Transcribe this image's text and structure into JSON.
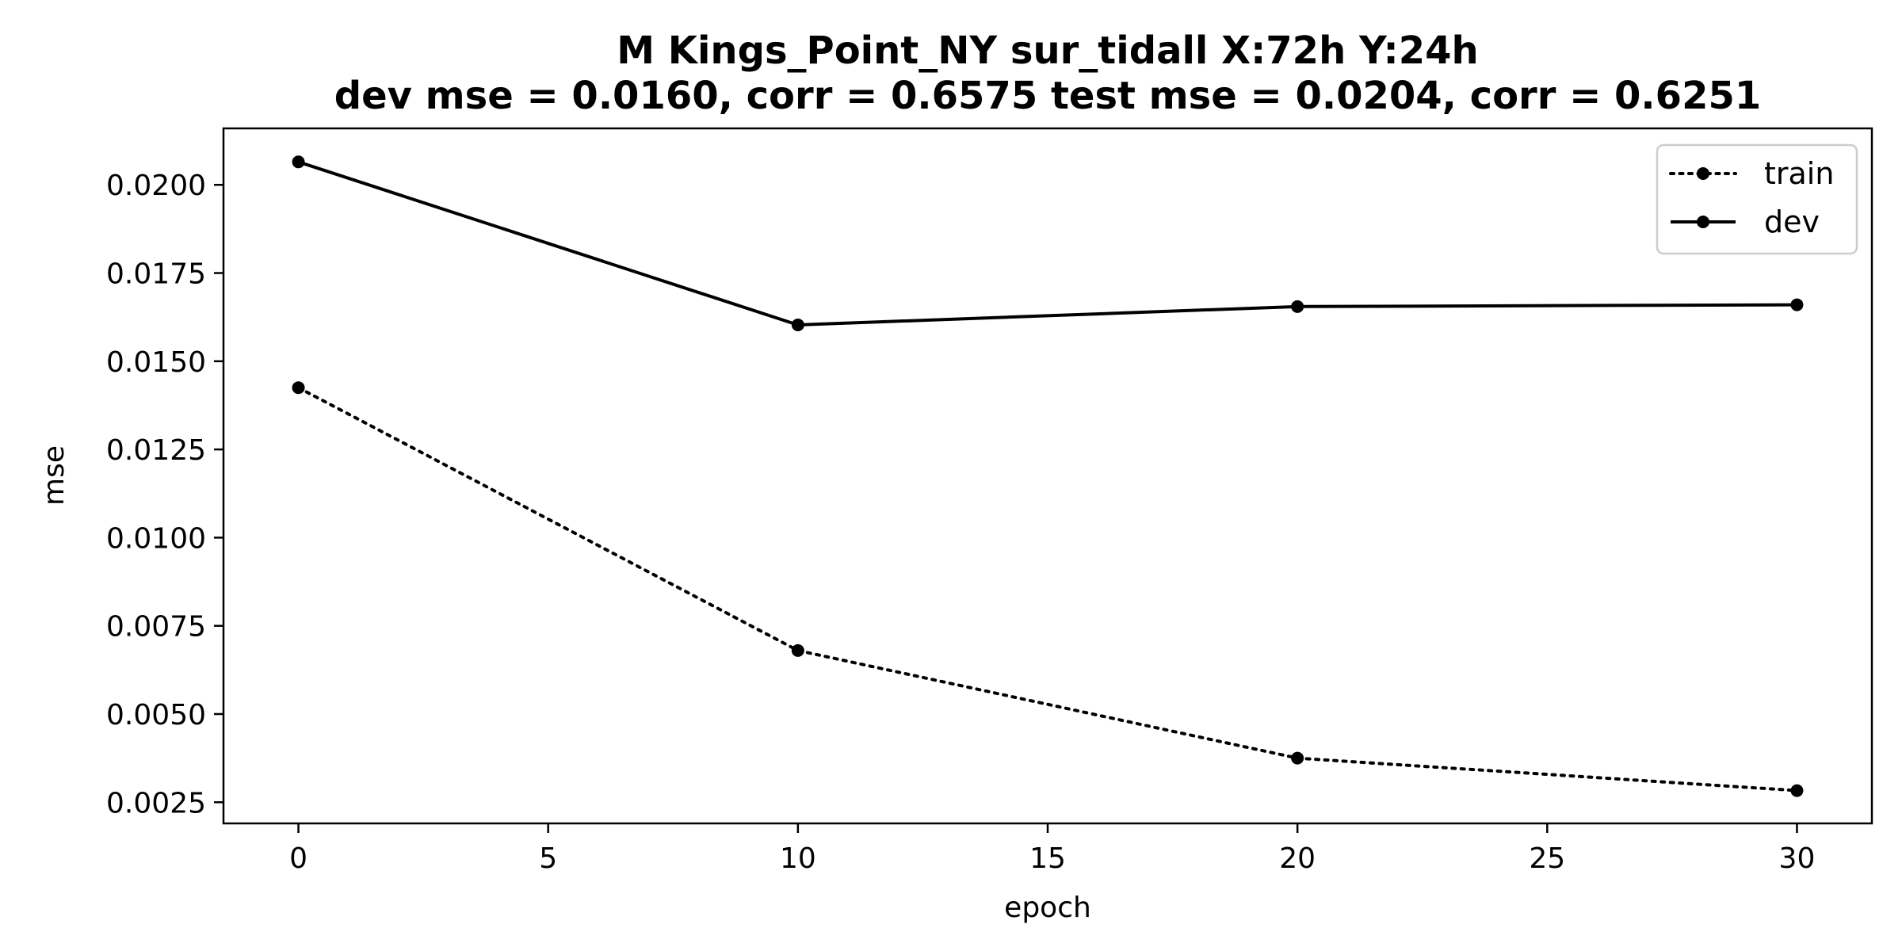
{
  "chart_data": {
    "type": "line",
    "title_line1": "M Kings_Point_NY   sur_tidall   X:72h   Y:24h",
    "title_line2": "dev mse = 0.0160, corr = 0.6575   test mse = 0.0204, corr = 0.6251",
    "xlabel": "epoch",
    "ylabel": "mse",
    "xlim": [
      -1.5,
      31.5
    ],
    "ylim": [
      0.0019,
      0.0216
    ],
    "xticks": [
      0,
      5,
      10,
      15,
      20,
      25,
      30
    ],
    "yticks": [
      0.0025,
      0.005,
      0.0075,
      0.01,
      0.0125,
      0.015,
      0.0175,
      0.02
    ],
    "xtick_labels": [
      "0",
      "5",
      "10",
      "15",
      "20",
      "25",
      "30"
    ],
    "ytick_labels": [
      "0.0025",
      "0.0050",
      "0.0075",
      "0.0100",
      "0.0125",
      "0.0150",
      "0.0175",
      "0.0200"
    ],
    "x": [
      0,
      10,
      20,
      30
    ],
    "series": [
      {
        "name": "train",
        "values": [
          0.01425,
          0.0068,
          0.00375,
          0.00283
        ],
        "style": "dotted",
        "color": "#000000"
      },
      {
        "name": "dev",
        "values": [
          0.02065,
          0.01603,
          0.01655,
          0.0166
        ],
        "style": "solid",
        "color": "#000000"
      }
    ],
    "grid": false,
    "legend_position": "top-right"
  }
}
